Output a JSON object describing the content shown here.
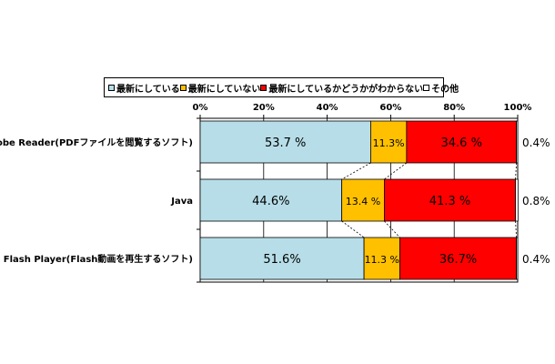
{
  "chart_data": {
    "type": "bar",
    "orientation": "horizontal",
    "stacked": "percent",
    "categories": [
      "Adobe Reader(PDFファイルを閲覧するソフト)",
      "Java",
      "Adobe Flash Player(Flash動画を再生するソフト)"
    ],
    "series": [
      {
        "name": "最新にしている",
        "color": "#b7dee8",
        "values": [
          53.7,
          44.6,
          51.6
        ],
        "labels": [
          "53.7 %",
          "44.6%",
          "51.6%"
        ]
      },
      {
        "name": "最新にしていない",
        "color": "#ffc000",
        "values": [
          11.3,
          13.4,
          11.3
        ],
        "labels": [
          "11.3%",
          "13.4 %",
          "11.3 %"
        ]
      },
      {
        "name": "最新にしているかどうかがわからない",
        "color": "#ff0000",
        "values": [
          34.6,
          41.3,
          36.7
        ],
        "labels": [
          "34.6 %",
          "41.3 %",
          "36.7%"
        ]
      },
      {
        "name": "その他",
        "color": "#ffffff",
        "values": [
          0.4,
          0.8,
          0.4
        ],
        "labels": [
          "0.4%",
          "0.8%",
          "0.4%"
        ]
      }
    ],
    "x_ticks": [
      "0%",
      "20%",
      "40%",
      "60%",
      "80%",
      "100%"
    ],
    "xlim": [
      0,
      100
    ],
    "legend_position": "top",
    "grid": "vertical",
    "series_lines": true
  }
}
